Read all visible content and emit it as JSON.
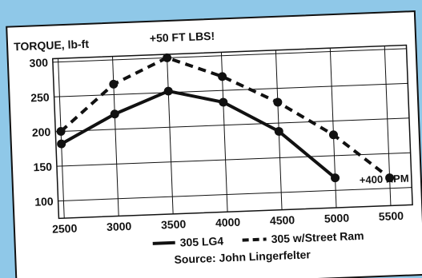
{
  "chart_data": {
    "type": "line",
    "title": "",
    "ylabel": "TORQUE, lb-ft",
    "xlabel": "",
    "annotation_top": "+50 FT LBS!",
    "annotation_right": "+400 RPM",
    "source": "Source: John Lingerfelter",
    "x_ticks": [
      "2500",
      "3000",
      "3500",
      "4000",
      "4500",
      "5000",
      "5500"
    ],
    "y_ticks": [
      "100",
      "150",
      "200",
      "250",
      "300"
    ],
    "xlim": [
      2450,
      5700
    ],
    "ylim": [
      75,
      305
    ],
    "grid": true,
    "legend_position": "bottom",
    "series": [
      {
        "name": "305 LG4",
        "style": "solid",
        "x": [
          2500,
          3000,
          3500,
          4000,
          4500,
          5000
        ],
        "values": [
          182,
          222,
          252,
          233,
          188,
          118
        ]
      },
      {
        "name": "305 w/Street Ram",
        "style": "dashed",
        "x": [
          2500,
          3000,
          3500,
          4000,
          4500,
          5000,
          5500
        ],
        "values": [
          200,
          265,
          300,
          270,
          230,
          180,
          115
        ]
      }
    ]
  },
  "colors": {
    "background": "#8fc8e8",
    "panel": "#ffffff",
    "line": "#111111"
  }
}
